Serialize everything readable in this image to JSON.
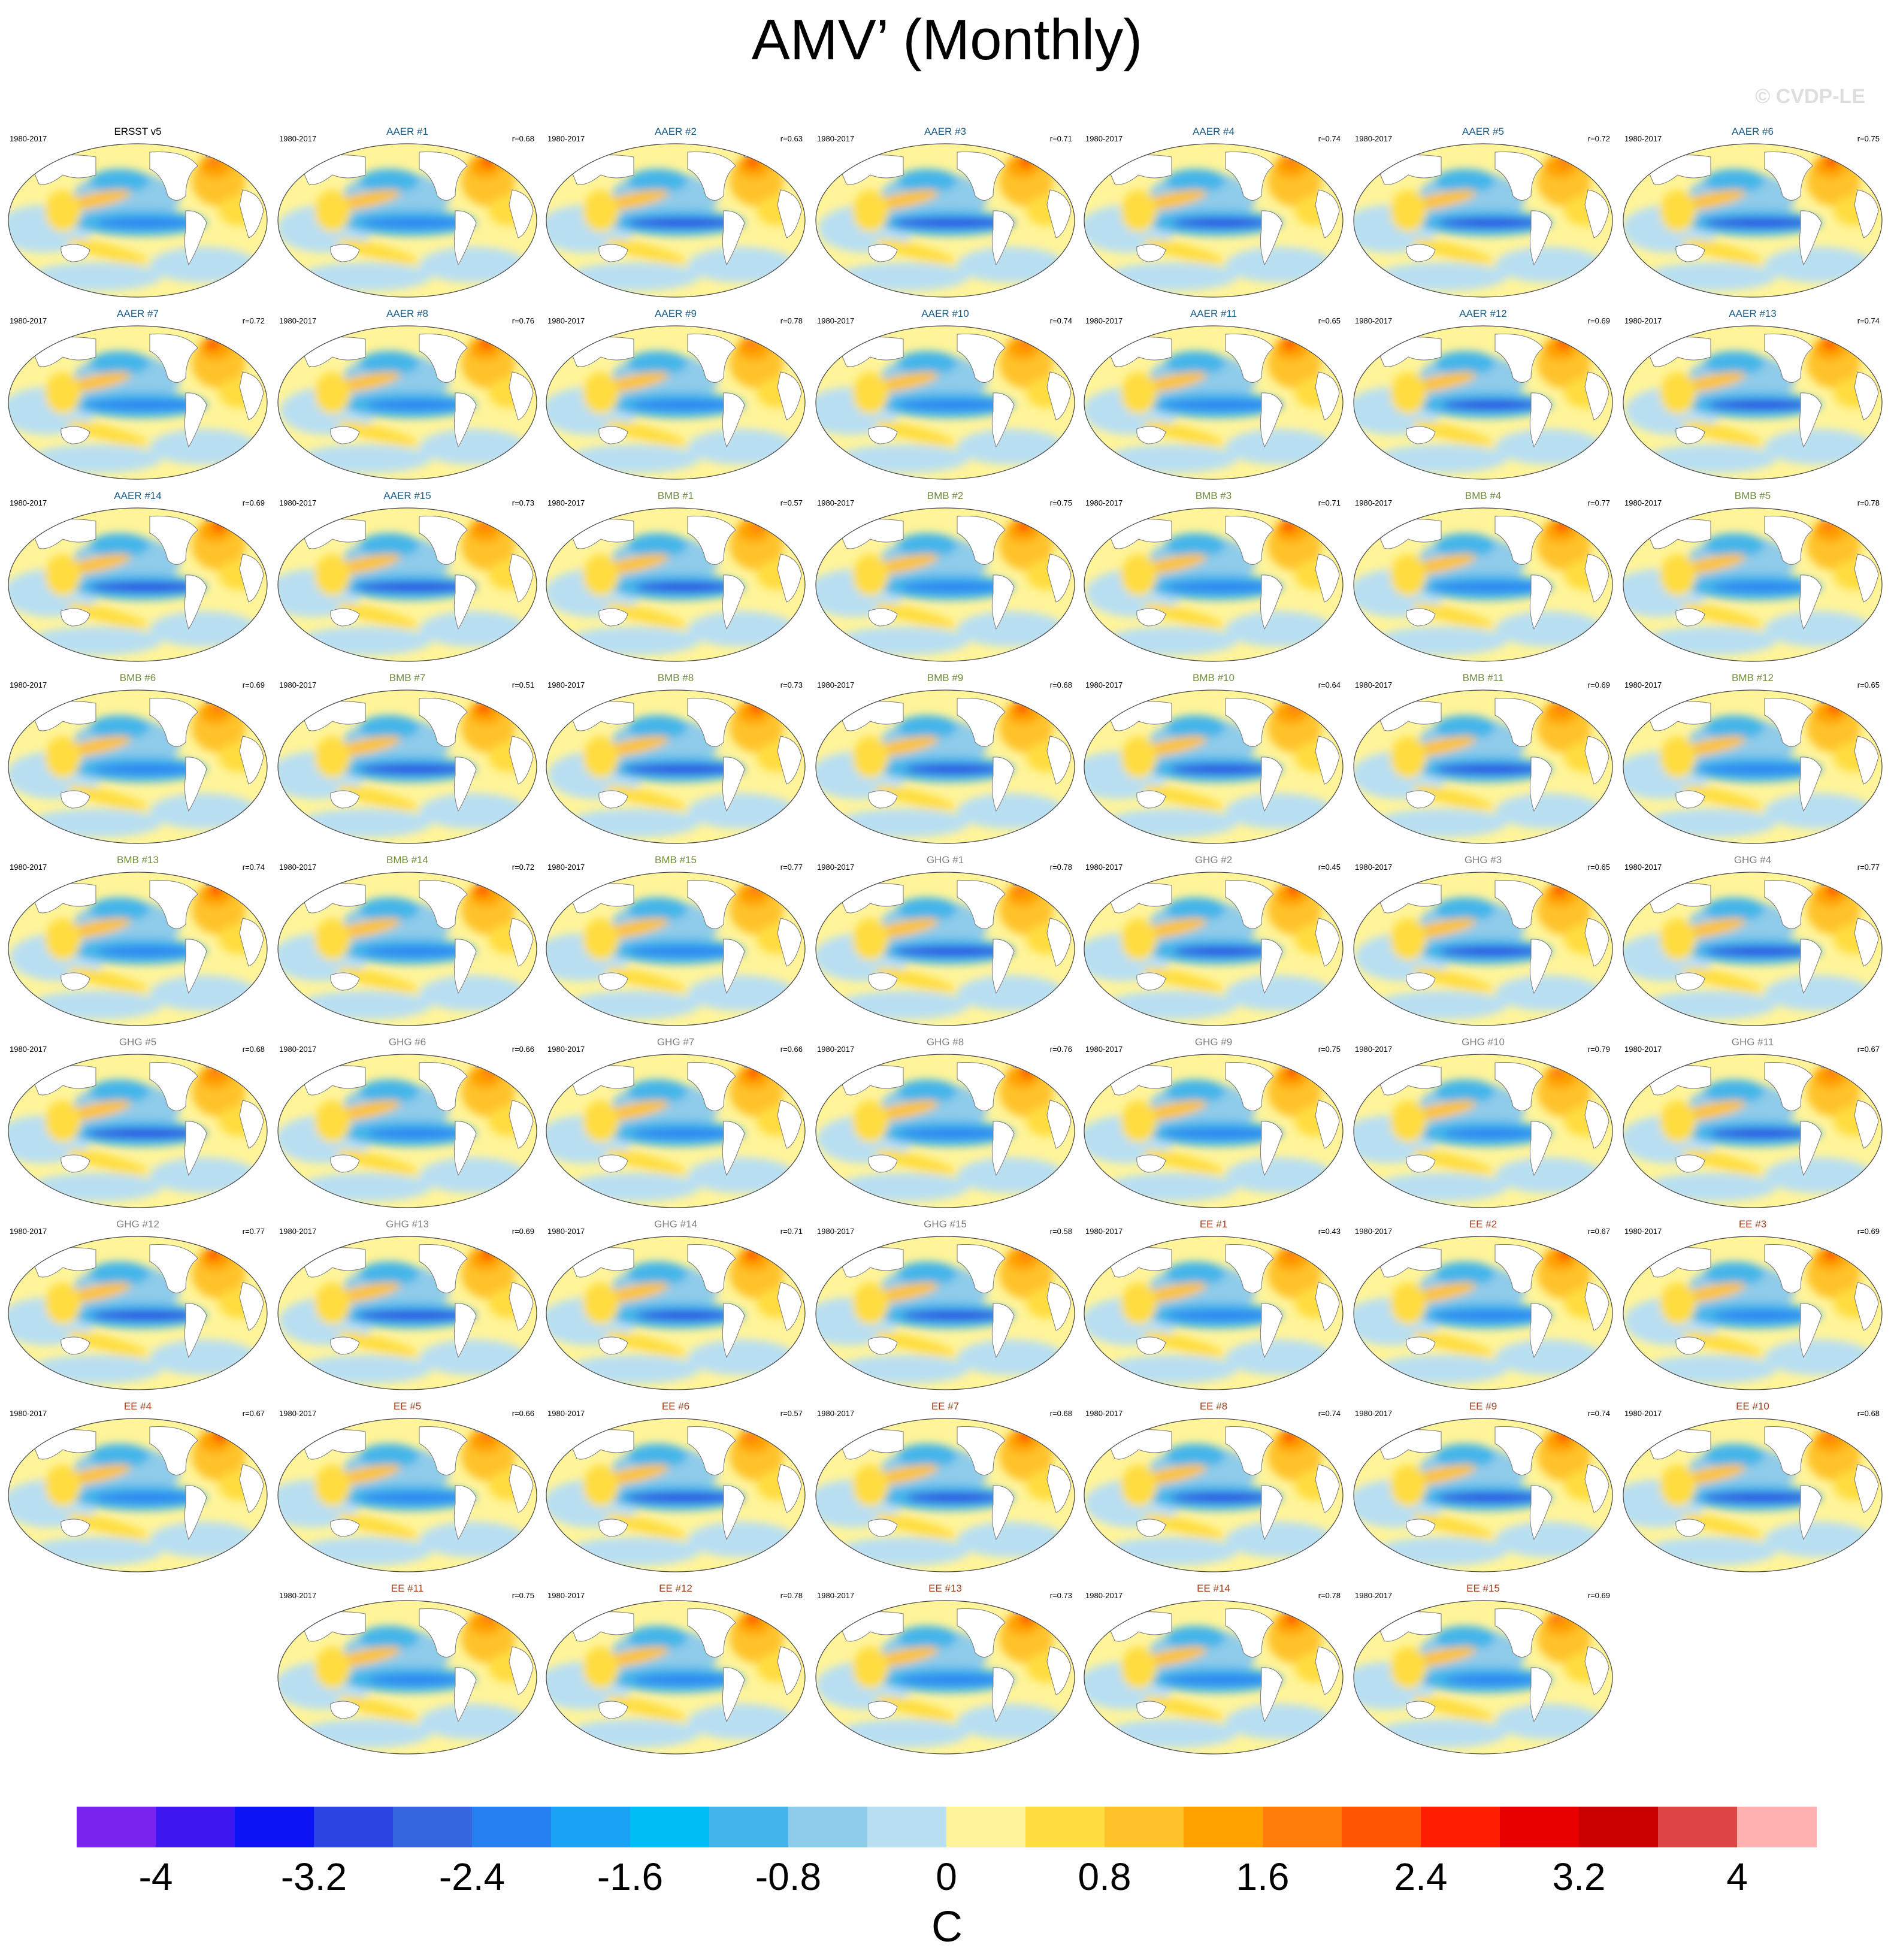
{
  "title": "AMV’ (Monthly)",
  "watermark": "© CVDP-LE",
  "observation": {
    "title": "ERSST v5",
    "period": "1980-2017",
    "color": "#000000"
  },
  "period": "1980-2017",
  "groups": [
    {
      "name": "AAER",
      "color": "#1a5e8a",
      "r": [
        "0.68",
        "0.63",
        "0.71",
        "0.74",
        "0.72",
        "0.75",
        "0.72",
        "0.76",
        "0.78",
        "0.74",
        "0.65",
        "0.69",
        "0.74",
        "0.69",
        "0.73"
      ]
    },
    {
      "name": "BMB",
      "color": "#6e8c3a",
      "r": [
        "0.57",
        "0.75",
        "0.71",
        "0.77",
        "0.78",
        "0.69",
        "0.51",
        "0.73",
        "0.68",
        "0.64",
        "0.69",
        "0.65",
        "0.74",
        "0.72",
        "0.77"
      ]
    },
    {
      "name": "GHG",
      "color": "#7f7f7f",
      "r": [
        "0.78",
        "0.45",
        "0.65",
        "0.77",
        "0.68",
        "0.66",
        "0.66",
        "0.76",
        "0.75",
        "0.79",
        "0.67",
        "0.77",
        "0.69",
        "0.71",
        "0.58"
      ]
    },
    {
      "name": "EE",
      "color": "#a0401c",
      "r": [
        "0.43",
        "0.67",
        "0.69",
        "0.67",
        "0.66",
        "0.57",
        "0.68",
        "0.74",
        "0.74",
        "0.68",
        "0.75",
        "0.78",
        "0.73",
        "0.78",
        "0.69"
      ]
    }
  ],
  "colorbar": {
    "unit": "C",
    "ticks": [
      "-4",
      "-3.2",
      "-2.4",
      "-1.6",
      "-0.8",
      "0",
      "0.8",
      "1.6",
      "2.4",
      "3.2",
      "4"
    ],
    "colors": [
      "#7a22ee",
      "#3d16f0",
      "#0b13f5",
      "#2b43e0",
      "#3566e0",
      "#2680f2",
      "#1aa3f5",
      "#00bdf5",
      "#44b5ea",
      "#8fcbea",
      "#b9dff2",
      "#fff49a",
      "#ffdd40",
      "#ffc22a",
      "#ffa200",
      "#ff7d08",
      "#ff5400",
      "#ff1f00",
      "#e80000",
      "#c80000",
      "#dd4444",
      "#ffb0b0"
    ]
  },
  "chart_data": {
    "type": "heatmap",
    "title": "AMV’ (Monthly)",
    "panel_count": 61,
    "observation": "ERSST v5",
    "period": "1980-2017",
    "colorbar_range": [
      -4,
      4
    ],
    "colorbar_interval": 0.4,
    "unit": "C"
  }
}
